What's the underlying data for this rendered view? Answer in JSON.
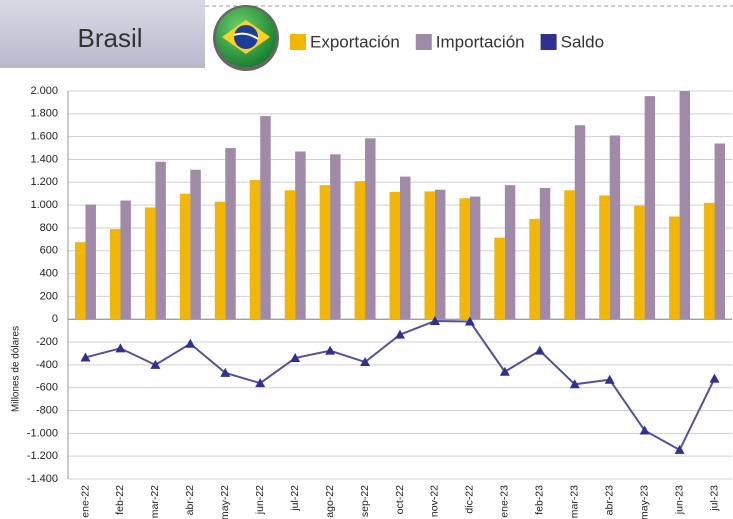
{
  "chart_data": {
    "type": "bar",
    "header": "Brasil",
    "y_label": "Millones de dólares",
    "categories": [
      "ene-22",
      "feb-22",
      "mar-22",
      "abr-22",
      "may-22",
      "jun-22",
      "jul-22",
      "ago-22",
      "sep-22",
      "oct-22",
      "nov-22",
      "dic-22",
      "ene-23",
      "feb-23",
      "mar-23",
      "abr-23",
      "may-23",
      "jun-23",
      "jul-23"
    ],
    "series": [
      {
        "name": "Exportación",
        "color": "#f2b705",
        "values": [
          675,
          790,
          980,
          1100,
          1030,
          1220,
          1130,
          1175,
          1210,
          1115,
          1120,
          1060,
          715,
          880,
          1130,
          1085,
          995,
          900,
          1020
        ]
      },
      {
        "name": "Importación",
        "color": "#a08aa8",
        "values": [
          1005,
          1040,
          1380,
          1310,
          1500,
          1780,
          1470,
          1445,
          1585,
          1250,
          1135,
          1075,
          1175,
          1150,
          1700,
          1610,
          1955,
          2000,
          1540
        ]
      },
      {
        "name": "Saldo",
        "color": "#2e3192",
        "type": "line",
        "line_color": "#55519a",
        "values": [
          -335,
          -255,
          -400,
          -215,
          -470,
          -560,
          -340,
          -275,
          -375,
          -135,
          -15,
          -20,
          -460,
          -275,
          -570,
          -530,
          -975,
          -1145,
          -520
        ]
      }
    ],
    "ylim": [
      -1400,
      2000
    ],
    "yticks": [
      {
        "value": 2000,
        "label": "2.000"
      },
      {
        "value": 1800,
        "label": "1.800"
      },
      {
        "value": 1600,
        "label": "1.600"
      },
      {
        "value": 1400,
        "label": "1.400"
      },
      {
        "value": 1200,
        "label": "1.200"
      },
      {
        "value": 1000,
        "label": "1.000"
      },
      800,
      600,
      400,
      200,
      0,
      -200,
      -400,
      -600,
      -800,
      {
        "value": -1000,
        "label": "-1.000"
      },
      {
        "value": -1200,
        "label": "-1.200"
      },
      {
        "value": -1400,
        "label": "-1.400"
      }
    ],
    "grid": true
  }
}
